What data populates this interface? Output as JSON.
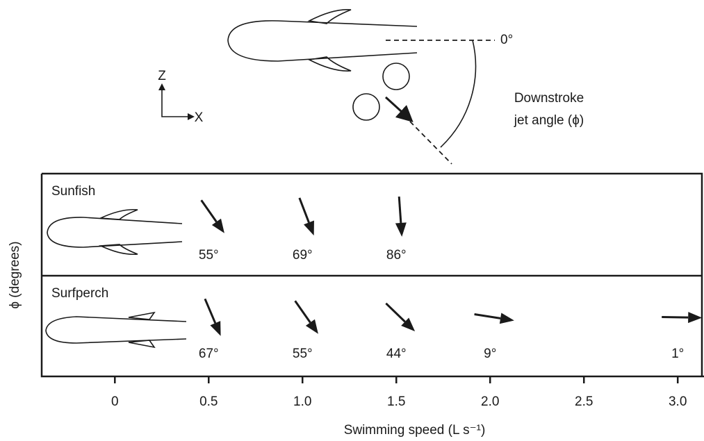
{
  "diagram": {
    "z_label": "Z",
    "x_label": "X",
    "zero_label": "0°",
    "jet_label_1": "Downstroke",
    "jet_label_2": "jet angle (ϕ)"
  },
  "chart_data": {
    "type": "arrow",
    "x_label": "Swimming speed (L s⁻¹)",
    "y_label": "ϕ (degrees)",
    "xlim": [
      -0.39,
      3.14
    ],
    "xticks": [
      0,
      0.5,
      {
        "value": 1,
        "label": "1.0"
      },
      1.5,
      {
        "value": 2,
        "label": "2.0"
      },
      2.5,
      {
        "value": 3,
        "label": "3.0"
      }
    ],
    "series": [
      {
        "name": "Sunfish",
        "color": "#1a1a1a",
        "x": [
          0.5,
          1.0,
          1.5
        ],
        "values": [
          55,
          69,
          86
        ],
        "value_labels": [
          "55°",
          "69°",
          "86°"
        ]
      },
      {
        "name": "Surfperch",
        "color": "#1a1a1a",
        "x": [
          0.5,
          1.0,
          1.5,
          2.0,
          3.0
        ],
        "values": [
          67,
          55,
          44,
          9,
          1
        ],
        "value_labels": [
          "67°",
          "55°",
          "44°",
          "9°",
          "1°"
        ]
      }
    ]
  }
}
